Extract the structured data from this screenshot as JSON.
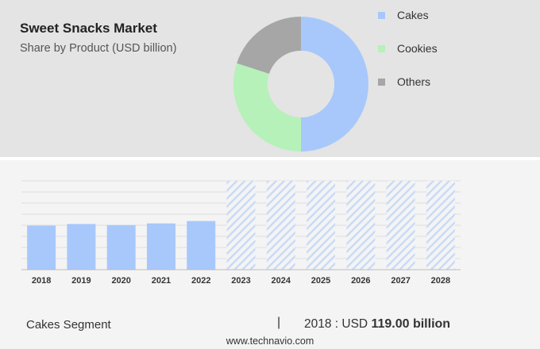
{
  "header": {
    "title": "Sweet Snacks Market",
    "subtitle": "Share by Product (USD billion)"
  },
  "chart_data": [
    {
      "type": "pie",
      "variant": "donut",
      "categories": [
        "Cakes",
        "Cookies",
        "Others"
      ],
      "values": [
        50,
        30,
        20
      ],
      "colors": [
        "#a8c8fb",
        "#b6f1b9",
        "#a6a6a6"
      ],
      "legend_position": "right"
    },
    {
      "type": "bar",
      "categories": [
        "2018",
        "2019",
        "2020",
        "2021",
        "2022",
        "2023",
        "2024",
        "2025",
        "2026",
        "2027",
        "2028"
      ],
      "values": [
        119.0,
        123.5,
        120.5,
        125.0,
        131.5,
        null,
        null,
        null,
        null,
        null,
        null
      ],
      "forecast_categories": [
        "2023",
        "2024",
        "2025",
        "2026",
        "2027",
        "2028"
      ],
      "ylim": [
        0,
        240
      ],
      "grid": true,
      "colors": {
        "actual": "#a8c8fb",
        "forecast_stripe": "#c9daf6"
      }
    }
  ],
  "footer": {
    "segment_label": "Cakes Segment",
    "separator": "|",
    "year_value_prefix": "2018 : USD",
    "value_text": "119.00 billion",
    "source": "www.technavio.com"
  }
}
